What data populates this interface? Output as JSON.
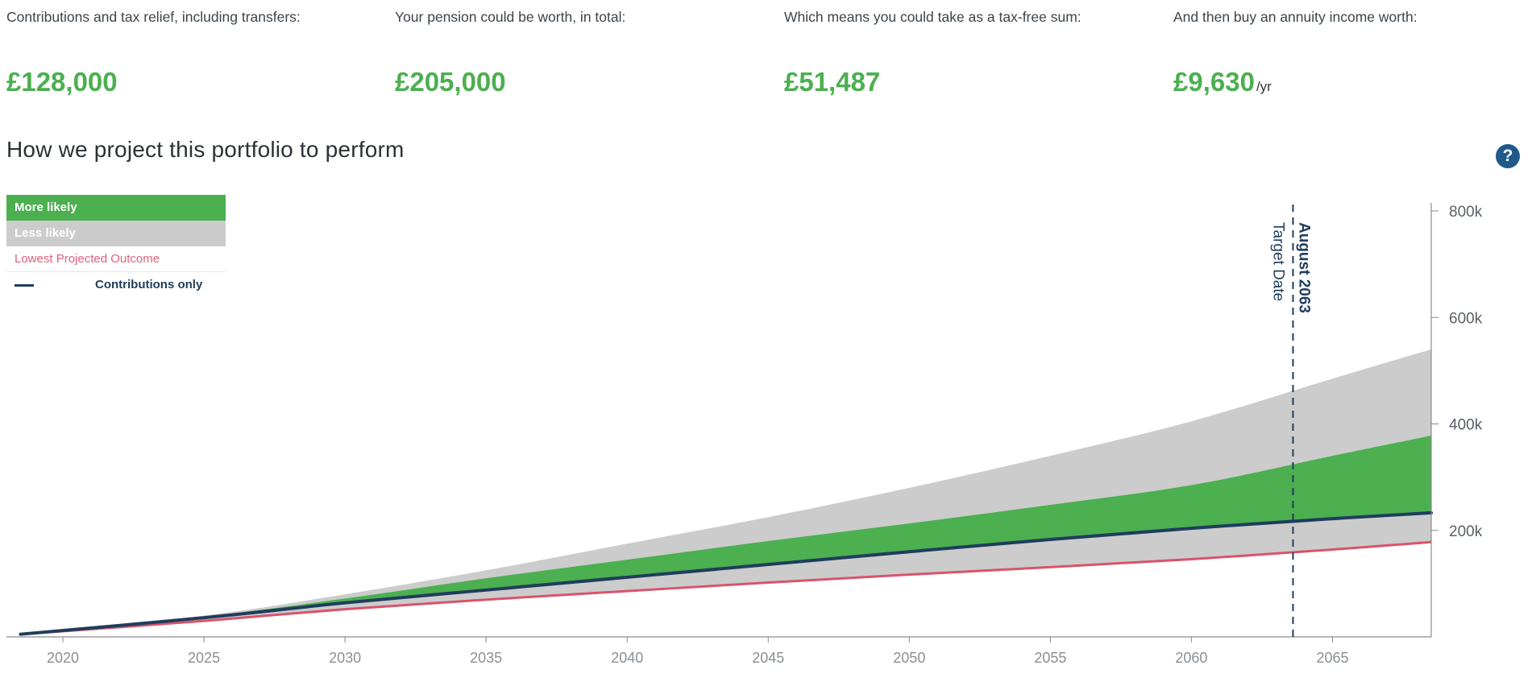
{
  "summary": [
    {
      "label": "Contributions and tax relief, including transfers:",
      "value": "£128,000",
      "unit": ""
    },
    {
      "label": "Your pension could be worth, in total:",
      "value": "£205,000",
      "unit": ""
    },
    {
      "label": "Which means you could take as a tax-free sum:",
      "value": "£51,487",
      "unit": ""
    },
    {
      "label": "And then buy an annuity income worth:",
      "value": "£9,630",
      "unit": "/yr"
    }
  ],
  "chart_title": "How we project this portfolio to perform",
  "help_icon": "question-circle-icon",
  "legend": {
    "more_likely": "More likely",
    "less_likely": "Less likely",
    "lowest": "Lowest Projected Outcome",
    "contributions": "Contributions only"
  },
  "target": {
    "label": "Target Date",
    "date": "August 2063",
    "x": 2063.6
  },
  "colors": {
    "more_likely": "#4caf50",
    "less_likely": "#cccccc",
    "lowest": "#d9536b",
    "contributions": "#1f3d5c",
    "target": "#1f3d5c"
  },
  "chart_data": {
    "type": "area",
    "x": [
      2018.5,
      2025,
      2030,
      2035,
      2040,
      2045,
      2050,
      2055,
      2060,
      2065,
      2068.5
    ],
    "xlim": [
      2018,
      2068.5
    ],
    "ylim": [
      0,
      800000
    ],
    "x_ticks": [
      2020,
      2025,
      2030,
      2035,
      2040,
      2045,
      2050,
      2055,
      2060,
      2065
    ],
    "x_tick_labels": [
      "2020",
      "2025",
      "2030",
      "2035",
      "2040",
      "2045",
      "2050",
      "2055",
      "2060",
      "2065"
    ],
    "y_ticks": [
      200000,
      400000,
      600000,
      800000
    ],
    "y_tick_labels": [
      "200k",
      "400k",
      "600k",
      "800k"
    ],
    "less_likely_band": {
      "lower": [
        5000,
        30000,
        52000,
        70000,
        86000,
        102000,
        117000,
        131000,
        146000,
        164000,
        178000
      ],
      "upper": [
        5000,
        40000,
        80000,
        125000,
        175000,
        225000,
        280000,
        340000,
        405000,
        485000,
        540000
      ]
    },
    "more_likely_band": {
      "lower": [
        5000,
        34000,
        63000,
        88000,
        113000,
        137000,
        160000,
        183000,
        202000,
        220000,
        232000
      ],
      "upper": [
        5000,
        38000,
        72000,
        110000,
        145000,
        180000,
        213000,
        248000,
        285000,
        340000,
        378000
      ]
    },
    "lowest_projected": [
      5000,
      30000,
      52000,
      70000,
      86000,
      102000,
      117000,
      131000,
      146000,
      164000,
      178000
    ],
    "contributions_only": [
      5000,
      36000,
      64000,
      88000,
      112000,
      136000,
      160000,
      183000,
      204000,
      222000,
      233000
    ]
  }
}
